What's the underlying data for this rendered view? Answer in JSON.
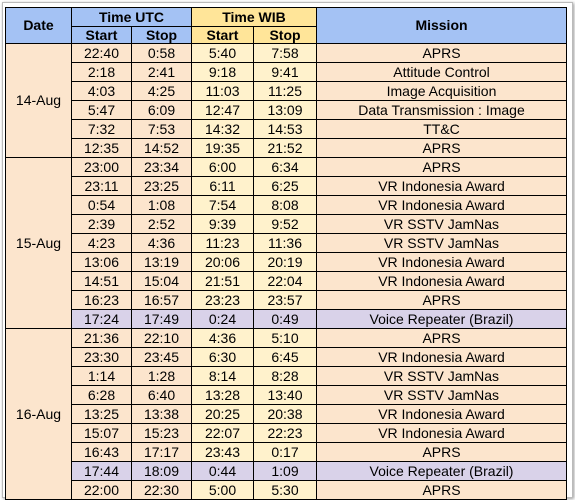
{
  "table": {
    "header": {
      "date": "Date",
      "utc": "Time UTC",
      "wib": "Time WIB",
      "mission": "Mission",
      "start_utc": "Start",
      "stop_utc": "Stop",
      "start_wib": "Start",
      "stop_wib": "Stop"
    },
    "groups": [
      {
        "date": "14-Aug",
        "rows": [
          {
            "cells": [
              "22:40",
              "0:58",
              "5:40",
              "7:58",
              "APRS"
            ]
          },
          {
            "cells": [
              "2:18",
              "2:41",
              "9:18",
              "9:41",
              "Attitude Control"
            ]
          },
          {
            "cells": [
              "4:03",
              "4:25",
              "11:03",
              "11:25",
              "Image Acquisition"
            ]
          },
          {
            "cells": [
              "5:47",
              "6:09",
              "12:47",
              "13:09",
              "Data Transmission : Image"
            ]
          },
          {
            "cells": [
              "7:32",
              "7:53",
              "14:32",
              "14:53",
              "TT&C"
            ]
          },
          {
            "cells": [
              "12:35",
              "14:52",
              "19:35",
              "21:52",
              "APRS"
            ]
          }
        ]
      },
      {
        "date": "15-Aug",
        "rows": [
          {
            "cells": [
              "23:00",
              "23:34",
              "6:00",
              "6:34",
              "APRS"
            ]
          },
          {
            "cells": [
              "23:11",
              "23:25",
              "6:11",
              "6:25",
              "VR Indonesia Award"
            ]
          },
          {
            "cells": [
              "0:54",
              "1:08",
              "7:54",
              "8:08",
              "VR Indonesia Award"
            ]
          },
          {
            "cells": [
              "2:39",
              "2:52",
              "9:39",
              "9:52",
              "VR SSTV JamNas"
            ]
          },
          {
            "cells": [
              "4:23",
              "4:36",
              "11:23",
              "11:36",
              "VR SSTV JamNas"
            ]
          },
          {
            "cells": [
              "13:06",
              "13:19",
              "20:06",
              "20:19",
              "VR Indonesia Award"
            ]
          },
          {
            "cells": [
              "14:51",
              "15:04",
              "21:51",
              "22:04",
              "VR Indonesia Award"
            ]
          },
          {
            "cells": [
              "16:23",
              "16:57",
              "23:23",
              "23:57",
              "APRS"
            ]
          },
          {
            "cells": [
              "17:24",
              "17:49",
              "0:24",
              "0:49",
              "Voice Repeater (Brazil)"
            ],
            "highlight": true
          }
        ]
      },
      {
        "date": "16-Aug",
        "rows": [
          {
            "cells": [
              "21:36",
              "22:10",
              "4:36",
              "5:10",
              "APRS"
            ]
          },
          {
            "cells": [
              "23:30",
              "23:45",
              "6:30",
              "6:45",
              "VR Indonesia Award"
            ]
          },
          {
            "cells": [
              "1:14",
              "1:28",
              "8:14",
              "8:28",
              "VR SSTV JamNas"
            ]
          },
          {
            "cells": [
              "6:28",
              "6:40",
              "13:28",
              "13:40",
              "VR SSTV JamNas"
            ]
          },
          {
            "cells": [
              "13:25",
              "13:38",
              "20:25",
              "20:38",
              "VR Indonesia Award"
            ]
          },
          {
            "cells": [
              "15:07",
              "15:23",
              "22:07",
              "22:23",
              "VR Indonesia Award"
            ]
          },
          {
            "cells": [
              "16:43",
              "17:17",
              "23:43",
              "0:17",
              "APRS"
            ]
          },
          {
            "cells": [
              "17:44",
              "18:09",
              "0:44",
              "1:09",
              "Voice Repeater (Brazil)"
            ],
            "highlight": true
          },
          {
            "cells": [
              "22:00",
              "22:30",
              "5:00",
              "5:30",
              "APRS"
            ]
          }
        ]
      }
    ]
  }
}
